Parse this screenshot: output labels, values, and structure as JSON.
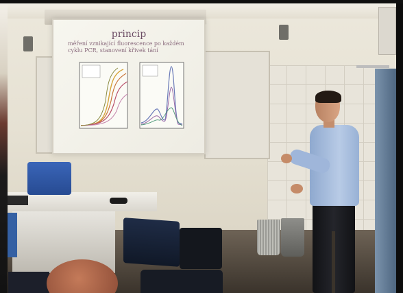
{
  "slide": {
    "title": "princip",
    "subtitle": "měření vznikající fluorescence po každém cyklu PCR, stanovení křivek tání"
  },
  "colors": {
    "slide_background": "#f4f3ec",
    "slide_title": "#6a4a63",
    "chair_blue": "#3460a3",
    "shirt": "#a9bfe0"
  },
  "icons": [
    "speaker-icon",
    "projector-screen-icon"
  ]
}
